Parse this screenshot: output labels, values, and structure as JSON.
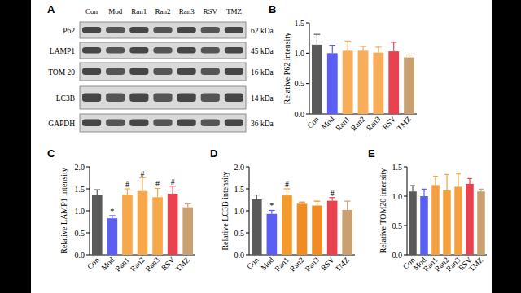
{
  "blot": {
    "panel": "A",
    "lanes": [
      "Con",
      "Mod",
      "Ran1",
      "Ran2",
      "Ran3",
      "RSV",
      "TMZ"
    ],
    "rows": [
      {
        "protein": "P62",
        "size": "62 kDa"
      },
      {
        "protein": "LAMP1",
        "size": "45 kDa"
      },
      {
        "protein": "TOM 20",
        "size": "16 kDa"
      },
      {
        "protein": "LC3B",
        "size": "14 kDa"
      },
      {
        "protein": "GAPDH",
        "size": "36 kDa"
      }
    ]
  },
  "chart_data": [
    {
      "type": "bar",
      "title": "B",
      "ylabel": "Relative P62 intensity",
      "categories": [
        "Con",
        "Mod",
        "Ran1",
        "Ran2",
        "Ran3",
        "RSV",
        "TMZ"
      ],
      "values": [
        1.14,
        1.0,
        1.04,
        1.04,
        1.01,
        1.03,
        0.93
      ],
      "errors": [
        0.17,
        0.13,
        0.16,
        0.07,
        0.09,
        0.15,
        0.04
      ],
      "colors": [
        "#5a5a5a",
        "#5a5ef2",
        "#f7ad5a",
        "#f7ad5a",
        "#f7ad5a",
        "#e8424e",
        "#c9a070"
      ],
      "ylim": [
        0,
        1.5
      ],
      "yticks": [
        {
          "value": 0,
          "label": "0.0"
        },
        0.5,
        {
          "value": 1,
          "label": "1.0"
        },
        1.5
      ]
    },
    {
      "type": "bar",
      "title": "C",
      "ylabel": "Relative LAMP1 intensity",
      "categories": [
        "Con",
        "Mod",
        "Ran1",
        "Ran2",
        "Ran3",
        "RSV",
        "TMZ"
      ],
      "values": [
        1.36,
        0.83,
        1.37,
        1.45,
        1.31,
        1.39,
        1.08
      ],
      "errors": [
        0.12,
        0.06,
        0.13,
        0.3,
        0.2,
        0.17,
        0.08
      ],
      "significance": [
        null,
        "*",
        "#",
        "#",
        "#",
        "#",
        null
      ],
      "colors": [
        "#5a5a5a",
        "#5a5ef2",
        "#f7a84a",
        "#f7a84a",
        "#f7a84a",
        "#e8424e",
        "#c9a070"
      ],
      "ylim": [
        0,
        2
      ],
      "yticks": [
        {
          "value": 0,
          "label": "0.0"
        },
        0.5,
        {
          "value": 1,
          "label": "1.0"
        },
        1.5,
        {
          "value": 2,
          "label": "2.0"
        }
      ]
    },
    {
      "type": "bar",
      "title": "D",
      "ylabel": "Relative LC3B intensity",
      "categories": [
        "Con",
        "Mod",
        "Ran1",
        "Ran2",
        "Ran3",
        "RSV",
        "TMZ"
      ],
      "values": [
        1.26,
        0.93,
        1.35,
        1.16,
        1.12,
        1.23,
        1.02
      ],
      "errors": [
        0.1,
        0.08,
        0.15,
        0.04,
        0.1,
        0.07,
        0.2
      ],
      "significance": [
        null,
        "*",
        "#",
        null,
        null,
        "#",
        null
      ],
      "colors": [
        "#5a5a5a",
        "#5a5ef2",
        "#f39a2c",
        "#f08c22",
        "#f08c22",
        "#e8424e",
        "#c9a070"
      ],
      "ylim": [
        0,
        2
      ],
      "yticks": [
        {
          "value": 0,
          "label": "0.0"
        },
        0.5,
        {
          "value": 1,
          "label": "1.0"
        },
        1.5,
        {
          "value": 2,
          "label": "2.0"
        }
      ]
    },
    {
      "type": "bar",
      "title": "E",
      "ylabel": "Relative TOM20 intensity",
      "categories": [
        "Con",
        "Mod",
        "Ran1",
        "Ran2",
        "Ran3",
        "RSV",
        "TMZ"
      ],
      "values": [
        1.08,
        1.0,
        1.19,
        1.1,
        1.16,
        1.21,
        1.08
      ],
      "errors": [
        0.1,
        0.12,
        0.15,
        0.27,
        0.22,
        0.09,
        0.04
      ],
      "colors": [
        "#5a5a5a",
        "#5a5ef2",
        "#f5a040",
        "#f5a040",
        "#f5a040",
        "#e8424e",
        "#c9a070"
      ],
      "ylim": [
        0,
        1.5
      ],
      "yticks": [
        {
          "value": 0,
          "label": "0.0"
        },
        0.5,
        {
          "value": 1,
          "label": "1.0"
        },
        1.5
      ]
    }
  ]
}
